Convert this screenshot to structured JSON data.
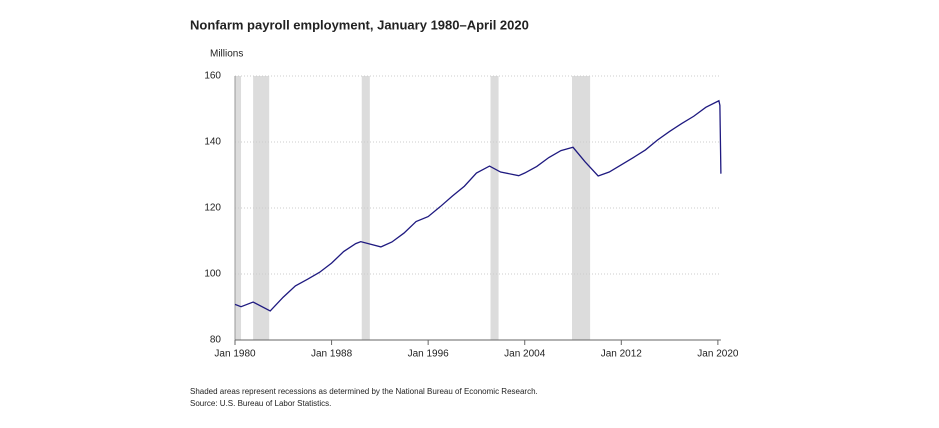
{
  "chart_data": {
    "type": "line",
    "title": "Nonfarm payroll employment, January 1980–April 2020",
    "y_label": "Millions",
    "notes": [
      "Shaded areas represent recessions as determined by the National Bureau of Economic Research.",
      "Source: U.S. Bureau of Labor Statistics."
    ],
    "x": [
      "Jan 1980",
      "Jul 1980",
      "Jul 1981",
      "Dec 1982",
      "Jan 1984",
      "Jan 1985",
      "Jan 1986",
      "Jan 1987",
      "Jan 1988",
      "Jan 1989",
      "Jan 1990",
      "Jun 1990",
      "Feb 1992",
      "Jan 1993",
      "Jan 1994",
      "Jan 1995",
      "Jan 1996",
      "Jan 1997",
      "Jan 1998",
      "Jan 1999",
      "Jan 2000",
      "Feb 2001",
      "Jan 2002",
      "Jul 2003",
      "Jan 2004",
      "Jan 2005",
      "Jan 2006",
      "Jan 2007",
      "Jan 2008",
      "Jan 2009",
      "Feb 2010",
      "Jan 2011",
      "Jan 2012",
      "Jan 2013",
      "Jan 2014",
      "Jan 2015",
      "Jan 2016",
      "Jan 2017",
      "Jan 2018",
      "Jan 2019",
      "Feb 2020",
      "Mar 2020",
      "Apr 2020"
    ],
    "series": [
      {
        "name": "Nonfarm payroll employment",
        "color": "#1f1a80",
        "values": [
          90.8,
          90.1,
          91.5,
          88.8,
          93.0,
          96.4,
          98.4,
          100.5,
          103.3,
          106.8,
          109.2,
          109.8,
          108.2,
          109.7,
          112.4,
          115.9,
          117.4,
          120.4,
          123.6,
          126.6,
          130.6,
          132.7,
          130.9,
          129.8,
          130.6,
          132.6,
          135.3,
          137.4,
          138.4,
          134.0,
          129.7,
          130.9,
          133.1,
          135.3,
          137.6,
          140.6,
          143.2,
          145.6,
          147.8,
          150.5,
          152.5,
          151.1,
          130.4
        ]
      }
    ],
    "recessions": [
      [
        "Jan 1980",
        "Jul 1980"
      ],
      [
        "Jul 1981",
        "Nov 1982"
      ],
      [
        "Jul 1990",
        "Mar 1991"
      ],
      [
        "Mar 2001",
        "Nov 2001"
      ],
      [
        "Dec 2007",
        "Jun 2009"
      ]
    ],
    "recession_color": "#dcdcdc",
    "xlim": [
      "Jan 1980",
      "Apr 2020"
    ],
    "xticks": [
      "Jan 1980",
      "Jan 1988",
      "Jan 1996",
      "Jan 2004",
      "Jan 2012",
      "Jan 2020"
    ],
    "ylim": [
      80,
      160
    ],
    "yticks": [
      80,
      100,
      120,
      140,
      160
    ],
    "grid": true
  }
}
